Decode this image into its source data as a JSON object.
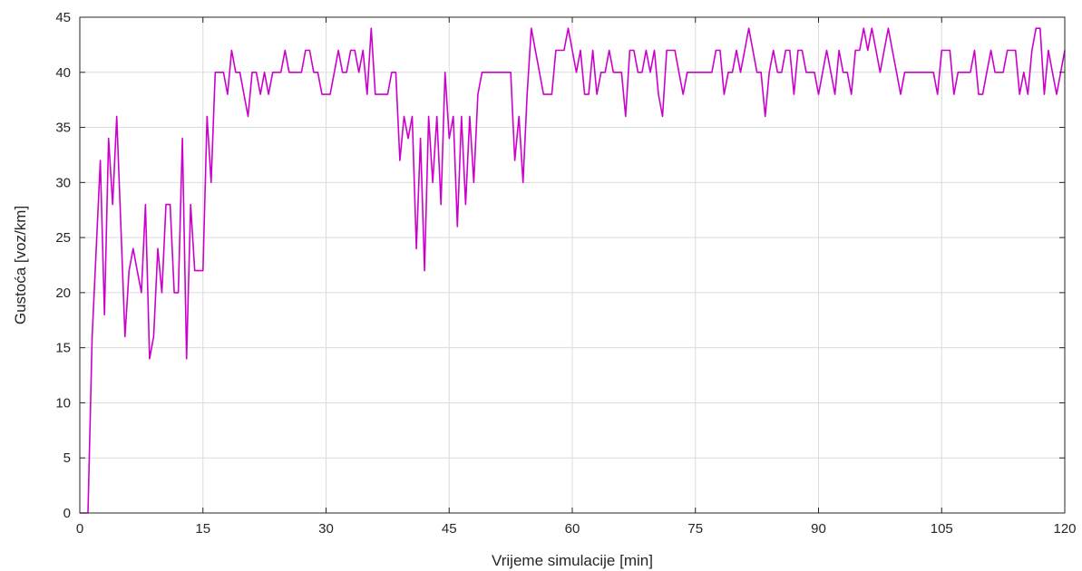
{
  "chart_data": {
    "type": "line",
    "xlabel": "Vrijeme simulacije [min]",
    "ylabel": "Gustoća [voz/km]",
    "xlim": [
      0,
      120
    ],
    "ylim": [
      0,
      45
    ],
    "xticks": [
      0,
      15,
      30,
      45,
      60,
      75,
      90,
      105,
      120
    ],
    "yticks": [
      0,
      5,
      10,
      15,
      20,
      25,
      30,
      35,
      40,
      45
    ],
    "grid": true,
    "series": [
      {
        "color": "#cc00cc",
        "x": [
          0,
          0.5,
          1,
          1.5,
          2,
          2.5,
          3,
          3.5,
          4,
          4.5,
          5,
          5.5,
          6,
          6.5,
          7,
          7.5,
          8,
          8.5,
          9,
          9.5,
          10,
          10.5,
          11,
          11.5,
          12,
          12.5,
          13,
          13.5,
          14,
          14.5,
          15,
          15.5,
          16,
          16.5,
          17,
          17.5,
          18,
          18.5,
          19,
          19.5,
          20,
          20.5,
          21,
          21.5,
          22,
          22.5,
          23,
          23.5,
          24,
          24.5,
          25,
          25.5,
          26,
          26.5,
          27,
          27.5,
          28,
          28.5,
          29,
          29.5,
          30,
          30.5,
          31,
          31.5,
          32,
          32.5,
          33,
          33.5,
          34,
          34.5,
          35,
          35.5,
          36,
          36.5,
          37,
          37.5,
          38,
          38.5,
          39,
          39.5,
          40,
          40.5,
          41,
          41.5,
          42,
          42.5,
          43,
          43.5,
          44,
          44.5,
          45,
          45.5,
          46,
          46.5,
          47,
          47.5,
          48,
          48.5,
          49,
          49.5,
          50,
          50.5,
          51,
          51.5,
          52,
          52.5,
          53,
          53.5,
          54,
          54.5,
          55,
          55.5,
          56,
          56.5,
          57,
          57.5,
          58,
          58.5,
          59,
          59.5,
          60,
          60.5,
          61,
          61.5,
          62,
          62.5,
          63,
          63.5,
          64,
          64.5,
          65,
          65.5,
          66,
          66.5,
          67,
          67.5,
          68,
          68.5,
          69,
          69.5,
          70,
          70.5,
          71,
          71.5,
          72,
          72.5,
          73,
          73.5,
          74,
          74.5,
          75,
          75.5,
          76,
          76.5,
          77,
          77.5,
          78,
          78.5,
          79,
          79.5,
          80,
          80.5,
          81,
          81.5,
          82,
          82.5,
          83,
          83.5,
          84,
          84.5,
          85,
          85.5,
          86,
          86.5,
          87,
          87.5,
          88,
          88.5,
          89,
          89.5,
          90,
          90.5,
          91,
          91.5,
          92,
          92.5,
          93,
          93.5,
          94,
          94.5,
          95,
          95.5,
          96,
          96.5,
          97,
          97.5,
          98,
          98.5,
          99,
          99.5,
          100,
          100.5,
          101,
          101.5,
          102,
          102.5,
          103,
          103.5,
          104,
          104.5,
          105,
          105.5,
          106,
          106.5,
          107,
          107.5,
          108,
          108.5,
          109,
          109.5,
          110,
          110.5,
          111,
          111.5,
          112,
          112.5,
          113,
          113.5,
          114,
          114.5,
          115,
          115.5,
          116,
          116.5,
          117,
          117.5,
          118,
          118.5,
          119,
          119.5,
          120
        ],
        "y": [
          0,
          0,
          0,
          16,
          24,
          32,
          18,
          34,
          28,
          36,
          26,
          16,
          22,
          24,
          22,
          20,
          28,
          14,
          16,
          24,
          20,
          28,
          28,
          20,
          20,
          34,
          14,
          28,
          22,
          22,
          22,
          36,
          30,
          40,
          40,
          40,
          38,
          42,
          40,
          40,
          38,
          36,
          40,
          40,
          38,
          40,
          38,
          40,
          40,
          40,
          42,
          40,
          40,
          40,
          40,
          42,
          42,
          40,
          40,
          38,
          38,
          38,
          40,
          42,
          40,
          40,
          42,
          42,
          40,
          42,
          38,
          44,
          38,
          38,
          38,
          38,
          40,
          40,
          32,
          36,
          34,
          36,
          24,
          34,
          22,
          36,
          30,
          36,
          28,
          40,
          34,
          36,
          26,
          36,
          28,
          36,
          30,
          38,
          40,
          40,
          40,
          40,
          40,
          40,
          40,
          40,
          32,
          36,
          30,
          38,
          44,
          42,
          40,
          38,
          38,
          38,
          42,
          42,
          42,
          44,
          42,
          40,
          42,
          38,
          38,
          42,
          38,
          40,
          40,
          42,
          40,
          40,
          40,
          36,
          42,
          42,
          40,
          40,
          42,
          40,
          42,
          38,
          36,
          42,
          42,
          42,
          40,
          38,
          40,
          40,
          40,
          40,
          40,
          40,
          40,
          42,
          42,
          38,
          40,
          40,
          42,
          40,
          42,
          44,
          42,
          40,
          40,
          36,
          40,
          42,
          40,
          40,
          42,
          42,
          38,
          42,
          42,
          40,
          40,
          40,
          38,
          40,
          42,
          40,
          38,
          42,
          40,
          40,
          38,
          42,
          42,
          44,
          42,
          44,
          42,
          40,
          42,
          44,
          42,
          40,
          38,
          40,
          40,
          40,
          40,
          40,
          40,
          40,
          40,
          38,
          42,
          42,
          42,
          38,
          40,
          40,
          40,
          40,
          42,
          38,
          38,
          40,
          42,
          40,
          40,
          40,
          42,
          42,
          42,
          38,
          40,
          38,
          42,
          44,
          44,
          38,
          42,
          40,
          38,
          40,
          42
        ]
      }
    ]
  }
}
